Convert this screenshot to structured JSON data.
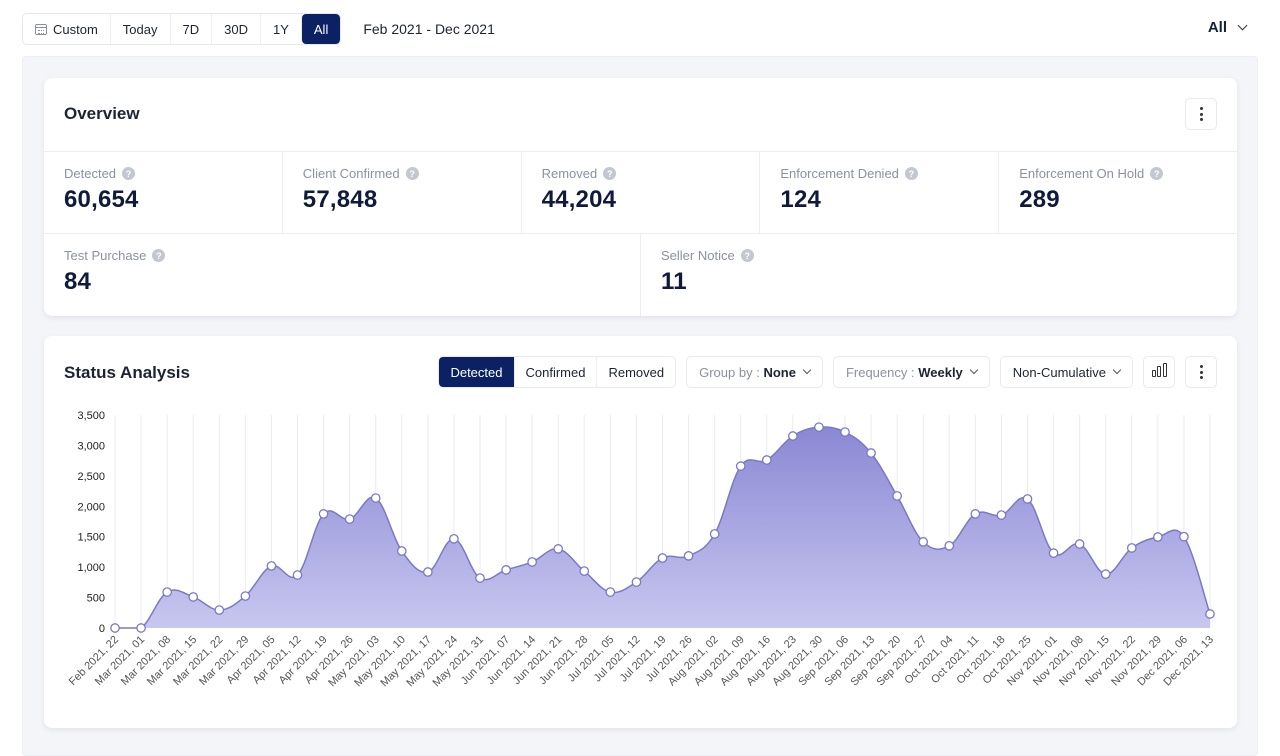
{
  "topbar": {
    "ranges": [
      {
        "label": "Custom",
        "icon": "calendar-icon",
        "active": false
      },
      {
        "label": "Today",
        "active": false
      },
      {
        "label": "7D",
        "active": false
      },
      {
        "label": "30D",
        "active": false
      },
      {
        "label": "1Y",
        "active": false
      },
      {
        "label": "All",
        "active": true
      }
    ],
    "date_range": "Feb 2021 - Dec 2021",
    "scope_dropdown": "All"
  },
  "overview": {
    "title": "Overview",
    "metrics_row1": [
      {
        "label": "Detected",
        "value": "60,654"
      },
      {
        "label": "Client Confirmed",
        "value": "57,848"
      },
      {
        "label": "Removed",
        "value": "44,204"
      },
      {
        "label": "Enforcement Denied",
        "value": "124"
      },
      {
        "label": "Enforcement On Hold",
        "value": "289"
      }
    ],
    "metrics_row2": [
      {
        "label": "Test Purchase",
        "value": "84"
      },
      {
        "label": "Seller Notice",
        "value": "11"
      }
    ]
  },
  "status_analysis": {
    "title": "Status Analysis",
    "tabs": [
      {
        "label": "Detected",
        "active": true
      },
      {
        "label": "Confirmed",
        "active": false
      },
      {
        "label": "Removed",
        "active": false
      }
    ],
    "group_by": {
      "key": "Group by :",
      "value": "None"
    },
    "frequency": {
      "key": "Frequency :",
      "value": "Weekly"
    },
    "cumulative": "Non-Cumulative",
    "colors": {
      "line": "#7b78c8",
      "fill_top": "#8b88d4",
      "fill_bottom": "#c8c7ef",
      "active_tab": "#0b2163"
    }
  },
  "chart_data": {
    "type": "area",
    "title": "Status Analysis",
    "xlabel": "",
    "ylabel": "",
    "ylim": [
      0,
      3500
    ],
    "yticks": [
      0,
      500,
      1000,
      1500,
      2000,
      2500,
      3000,
      3500
    ],
    "ytick_labels": [
      "0",
      "500",
      "1,000",
      "1,500",
      "2,000",
      "2,500",
      "3,000",
      "3,500"
    ],
    "grid": "vertical",
    "categories": [
      "Feb 2021, 22",
      "Mar 2021, 01",
      "Mar 2021, 08",
      "Mar 2021, 15",
      "Mar 2021, 22",
      "Mar 2021, 29",
      "Apr 2021, 05",
      "Apr 2021, 12",
      "Apr 2021, 19",
      "Apr 2021, 26",
      "May 2021, 03",
      "May 2021, 10",
      "May 2021, 17",
      "May 2021, 24",
      "May 2021, 31",
      "Jun 2021, 07",
      "Jun 2021, 14",
      "Jun 2021, 21",
      "Jun 2021, 28",
      "Jul 2021, 05",
      "Jul 2021, 12",
      "Jul 2021, 19",
      "Jul 2021, 26",
      "Aug 2021, 02",
      "Aug 2021, 09",
      "Aug 2021, 16",
      "Aug 2021, 23",
      "Aug 2021, 30",
      "Sep 2021, 06",
      "Sep 2021, 13",
      "Sep 2021, 20",
      "Sep 2021, 27",
      "Oct 2021, 04",
      "Oct 2021, 11",
      "Oct 2021, 18",
      "Oct 2021, 25",
      "Nov 2021, 01",
      "Nov 2021, 08",
      "Nov 2021, 15",
      "Nov 2021, 22",
      "Nov 2021, 29",
      "Dec 2021, 06",
      "Dec 2021, 13"
    ],
    "series": [
      {
        "name": "Detected",
        "values": [
          0,
          0,
          590,
          510,
          295,
          525,
          1020,
          870,
          1875,
          1790,
          2135,
          1265,
          920,
          1465,
          820,
          955,
          1085,
          1300,
          935,
          590,
          755,
          1150,
          1185,
          1545,
          2660,
          2760,
          3155,
          3300,
          3220,
          2875,
          2170,
          1415,
          1350,
          1875,
          1855,
          2120,
          1230,
          1380,
          885,
          1315,
          1495,
          1500,
          230
        ]
      }
    ]
  }
}
